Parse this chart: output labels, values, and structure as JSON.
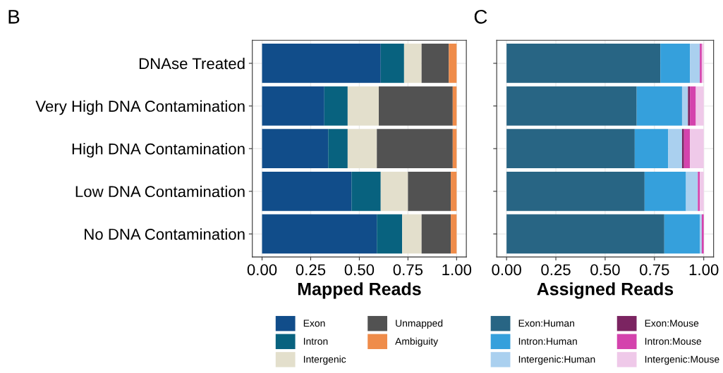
{
  "chart_data": [
    {
      "type": "bar",
      "orientation": "horizontal",
      "stacked": true,
      "title": "B",
      "xlabel": "Mapped Reads",
      "categories": [
        "DNAse Treated",
        "Very High DNA Contamination",
        "High DNA Contamination",
        "Low DNA Contamination",
        "No DNA Contamination"
      ],
      "xlim": [
        -0.05,
        1.05
      ],
      "xticks": [
        {
          "value": 0,
          "label": "0.00"
        },
        {
          "value": 0.25,
          "label": "0.25"
        },
        {
          "value": 0.5,
          "label": "0.50"
        },
        {
          "value": 0.75,
          "label": "0.75"
        },
        {
          "value": 1,
          "label": "1.00"
        }
      ],
      "grid": true,
      "legend": "bottom",
      "series": [
        {
          "name": "Exon",
          "color": "#114d8a",
          "values": [
            0.61,
            0.32,
            0.34,
            0.46,
            0.59
          ]
        },
        {
          "name": "Intron",
          "color": "#08627f",
          "values": [
            0.12,
            0.12,
            0.1,
            0.15,
            0.13
          ]
        },
        {
          "name": "Intergenic",
          "color": "#e3dfcc",
          "values": [
            0.09,
            0.16,
            0.15,
            0.14,
            0.1
          ]
        },
        {
          "name": "Unmapped",
          "color": "#525252",
          "values": [
            0.14,
            0.38,
            0.39,
            0.22,
            0.15
          ]
        },
        {
          "name": "Ambiguity",
          "color": "#ef8c4a",
          "values": [
            0.04,
            0.02,
            0.02,
            0.03,
            0.03
          ]
        }
      ]
    },
    {
      "type": "bar",
      "orientation": "horizontal",
      "stacked": true,
      "title": "C",
      "xlabel": "Assigned Reads",
      "categories": [
        null,
        null,
        null,
        null,
        null
      ],
      "xlim": [
        -0.05,
        1.05
      ],
      "xticks": [
        {
          "value": 0,
          "label": "0.00"
        },
        {
          "value": 0.25,
          "label": "0.25"
        },
        {
          "value": 0.5,
          "label": "0.50"
        },
        {
          "value": 0.75,
          "label": "0.75"
        },
        {
          "value": 1,
          "label": "1.00"
        }
      ],
      "grid": true,
      "legend": "bottom",
      "series": [
        {
          "name": "Exon:Human",
          "color": "#286584",
          "values": [
            0.78,
            0.66,
            0.65,
            0.7,
            0.8
          ]
        },
        {
          "name": "Intron:Human",
          "color": "#35a0dc",
          "values": [
            0.15,
            0.23,
            0.17,
            0.21,
            0.18
          ]
        },
        {
          "name": "Intergenic:Human",
          "color": "#aad0ef",
          "values": [
            0.05,
            0.03,
            0.07,
            0.06,
            0.01
          ]
        },
        {
          "name": "Exon:Mouse",
          "color": "#7b2461",
          "values": [
            0,
            0.01,
            0.01,
            0,
            0
          ]
        },
        {
          "name": "Intron:Mouse",
          "color": "#d443ad",
          "values": [
            0.01,
            0.03,
            0.03,
            0.01,
            0.01
          ]
        },
        {
          "name": "Intergenic:Mouse",
          "color": "#efc9e9",
          "values": [
            0.01,
            0.04,
            0.07,
            0.02,
            0
          ]
        }
      ]
    }
  ]
}
